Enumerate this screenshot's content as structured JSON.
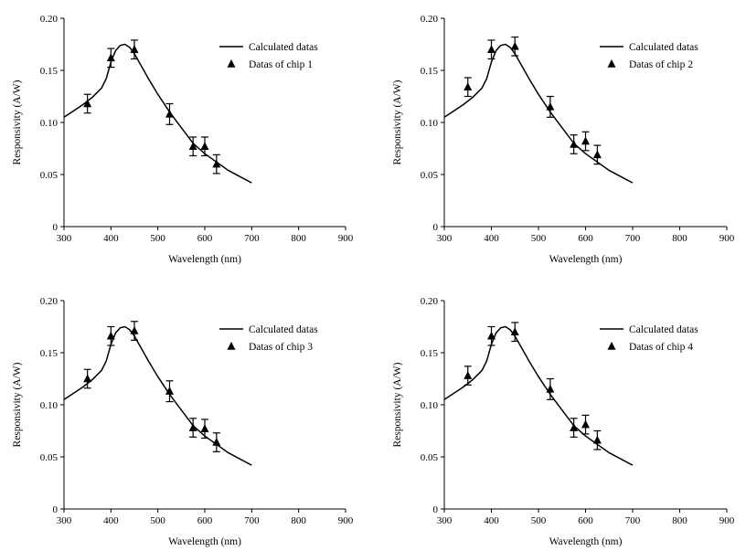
{
  "chart_data": [
    {
      "type": "scatter",
      "xlabel": "Wavelength (nm)",
      "ylabel": "Responsivity (A/W)",
      "xlim": [
        300,
        900
      ],
      "ylim": [
        0,
        0.2
      ],
      "xticks": [
        300,
        400,
        500,
        600,
        700,
        800,
        900
      ],
      "xtick_labels": [
        "300",
        "400",
        "500",
        "600",
        "700",
        "800",
        "900"
      ],
      "yticks": [
        0,
        0.05,
        0.1,
        0.15,
        0.2
      ],
      "ytick_labels": [
        "0",
        "0.05",
        "0.10",
        "0.15",
        "0.20"
      ],
      "legend_position": "top-right",
      "grid": false,
      "series": [
        {
          "name": "Calculated datas",
          "style": "line",
          "x": [
            300,
            320,
            340,
            360,
            380,
            390,
            400,
            410,
            420,
            430,
            440,
            450,
            460,
            480,
            500,
            525,
            550,
            575,
            600,
            625,
            650,
            675,
            700
          ],
          "y": [
            0.105,
            0.111,
            0.117,
            0.124,
            0.133,
            0.142,
            0.158,
            0.169,
            0.174,
            0.175,
            0.172,
            0.166,
            0.158,
            0.142,
            0.127,
            0.11,
            0.095,
            0.08,
            0.07,
            0.062,
            0.054,
            0.048,
            0.042
          ]
        },
        {
          "name": "Datas of chip 1",
          "style": "triangle-errorbar",
          "x": [
            350,
            400,
            450,
            525,
            575,
            600,
            625
          ],
          "y": [
            0.118,
            0.162,
            0.17,
            0.108,
            0.077,
            0.077,
            0.06
          ],
          "err": [
            0.009,
            0.009,
            0.009,
            0.01,
            0.009,
            0.009,
            0.009
          ]
        }
      ]
    },
    {
      "type": "scatter",
      "xlabel": "Wavelength (nm)",
      "ylabel": "Responsivity (A/W)",
      "xlim": [
        300,
        900
      ],
      "ylim": [
        0,
        0.2
      ],
      "xticks": [
        300,
        400,
        500,
        600,
        700,
        800,
        900
      ],
      "xtick_labels": [
        "300",
        "400",
        "500",
        "600",
        "700",
        "800",
        "900"
      ],
      "yticks": [
        0,
        0.05,
        0.1,
        0.15,
        0.2
      ],
      "ytick_labels": [
        "0",
        "0.05",
        "0.10",
        "0.15",
        "0.20"
      ],
      "legend_position": "top-right",
      "grid": false,
      "series": [
        {
          "name": "Calculated datas",
          "style": "line",
          "x": [
            300,
            320,
            340,
            360,
            380,
            390,
            400,
            410,
            420,
            430,
            440,
            450,
            460,
            480,
            500,
            525,
            550,
            575,
            600,
            625,
            650,
            675,
            700
          ],
          "y": [
            0.105,
            0.111,
            0.117,
            0.124,
            0.133,
            0.142,
            0.158,
            0.169,
            0.174,
            0.175,
            0.172,
            0.166,
            0.158,
            0.142,
            0.127,
            0.11,
            0.095,
            0.08,
            0.07,
            0.062,
            0.054,
            0.048,
            0.042
          ]
        },
        {
          "name": "Datas of chip 2",
          "style": "triangle-errorbar",
          "x": [
            350,
            400,
            450,
            525,
            575,
            600,
            625
          ],
          "y": [
            0.134,
            0.17,
            0.173,
            0.115,
            0.079,
            0.082,
            0.069
          ],
          "err": [
            0.009,
            0.009,
            0.009,
            0.01,
            0.009,
            0.009,
            0.009
          ]
        }
      ]
    },
    {
      "type": "scatter",
      "xlabel": "Wavelength (nm)",
      "ylabel": "Responsivity (A/W)",
      "xlim": [
        300,
        900
      ],
      "ylim": [
        0,
        0.2
      ],
      "xticks": [
        300,
        400,
        500,
        600,
        700,
        800,
        900
      ],
      "xtick_labels": [
        "300",
        "400",
        "500",
        "600",
        "700",
        "800",
        "900"
      ],
      "yticks": [
        0,
        0.05,
        0.1,
        0.15,
        0.2
      ],
      "ytick_labels": [
        "0",
        "0.05",
        "0.10",
        "0.15",
        "0.20"
      ],
      "legend_position": "top-right",
      "grid": false,
      "series": [
        {
          "name": "Calculated datas",
          "style": "line",
          "x": [
            300,
            320,
            340,
            360,
            380,
            390,
            400,
            410,
            420,
            430,
            440,
            450,
            460,
            480,
            500,
            525,
            550,
            575,
            600,
            625,
            650,
            675,
            700
          ],
          "y": [
            0.105,
            0.111,
            0.117,
            0.124,
            0.133,
            0.142,
            0.158,
            0.169,
            0.174,
            0.175,
            0.172,
            0.166,
            0.158,
            0.142,
            0.127,
            0.11,
            0.095,
            0.08,
            0.07,
            0.062,
            0.054,
            0.048,
            0.042
          ]
        },
        {
          "name": "Datas of chip 3",
          "style": "triangle-errorbar",
          "x": [
            350,
            400,
            450,
            525,
            575,
            600,
            625
          ],
          "y": [
            0.125,
            0.166,
            0.171,
            0.113,
            0.078,
            0.077,
            0.064
          ],
          "err": [
            0.009,
            0.009,
            0.009,
            0.01,
            0.009,
            0.009,
            0.009
          ]
        }
      ]
    },
    {
      "type": "scatter",
      "xlabel": "Wavelength (nm)",
      "ylabel": "Responsivity (A/W)",
      "xlim": [
        300,
        900
      ],
      "ylim": [
        0,
        0.2
      ],
      "xticks": [
        300,
        400,
        500,
        600,
        700,
        800,
        900
      ],
      "xtick_labels": [
        "300",
        "400",
        "500",
        "600",
        "700",
        "800",
        "900"
      ],
      "yticks": [
        0,
        0.05,
        0.1,
        0.15,
        0.2
      ],
      "ytick_labels": [
        "0",
        "0.05",
        "0.10",
        "0.15",
        "0.20"
      ],
      "legend_position": "top-right",
      "grid": false,
      "series": [
        {
          "name": "Calculated datas",
          "style": "line",
          "x": [
            300,
            320,
            340,
            360,
            380,
            390,
            400,
            410,
            420,
            430,
            440,
            450,
            460,
            480,
            500,
            525,
            550,
            575,
            600,
            625,
            650,
            675,
            700
          ],
          "y": [
            0.105,
            0.111,
            0.117,
            0.124,
            0.133,
            0.142,
            0.158,
            0.169,
            0.174,
            0.175,
            0.172,
            0.166,
            0.158,
            0.142,
            0.127,
            0.11,
            0.095,
            0.08,
            0.07,
            0.062,
            0.054,
            0.048,
            0.042
          ]
        },
        {
          "name": "Datas of chip 4",
          "style": "triangle-errorbar",
          "x": [
            350,
            400,
            450,
            525,
            575,
            600,
            625
          ],
          "y": [
            0.128,
            0.166,
            0.17,
            0.115,
            0.078,
            0.081,
            0.066
          ],
          "err": [
            0.009,
            0.009,
            0.009,
            0.01,
            0.009,
            0.009,
            0.009
          ]
        }
      ]
    }
  ]
}
